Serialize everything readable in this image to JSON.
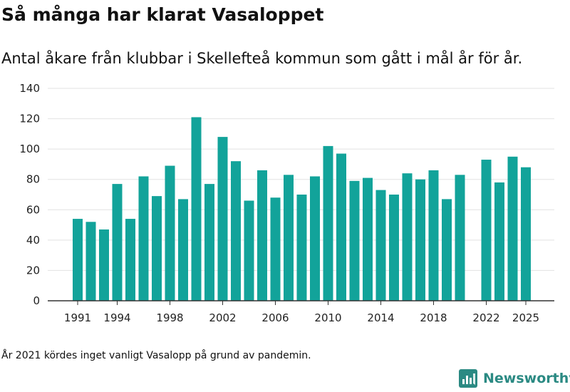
{
  "chart_data": {
    "type": "bar",
    "title": "Så många har klarat Vasaloppet",
    "subtitle": "Antal åkare från klubbar i Skellefteå kommun som gått i mål år för år.",
    "xlabel": "",
    "ylabel": "",
    "x": [
      1991,
      1992,
      1993,
      1994,
      1995,
      1996,
      1997,
      1998,
      1999,
      2000,
      2001,
      2002,
      2003,
      2004,
      2005,
      2006,
      2007,
      2008,
      2009,
      2010,
      2011,
      2012,
      2013,
      2014,
      2015,
      2016,
      2017,
      2018,
      2019,
      2020,
      2021,
      2022,
      2023,
      2024,
      2025
    ],
    "values": [
      54,
      52,
      47,
      77,
      54,
      82,
      69,
      89,
      67,
      121,
      77,
      108,
      92,
      66,
      86,
      68,
      83,
      70,
      82,
      102,
      97,
      79,
      81,
      73,
      70,
      84,
      80,
      86,
      67,
      83,
      null,
      93,
      78,
      95,
      88
    ],
    "x_ticks": [
      1991,
      1994,
      1998,
      2002,
      2006,
      2010,
      2014,
      2018,
      2022,
      2025
    ],
    "y_ticks": [
      0,
      20,
      40,
      60,
      80,
      100,
      120,
      140
    ],
    "ylim": [
      0,
      140
    ],
    "grid": true,
    "bar_color": "#12a39a",
    "footnote": "År 2021 kördes inget vanligt Vasalopp på grund av pandemin."
  },
  "brand": {
    "name": "Newsworthy",
    "icon": "newsworthy-logo-icon",
    "color": "#2b8a83"
  }
}
